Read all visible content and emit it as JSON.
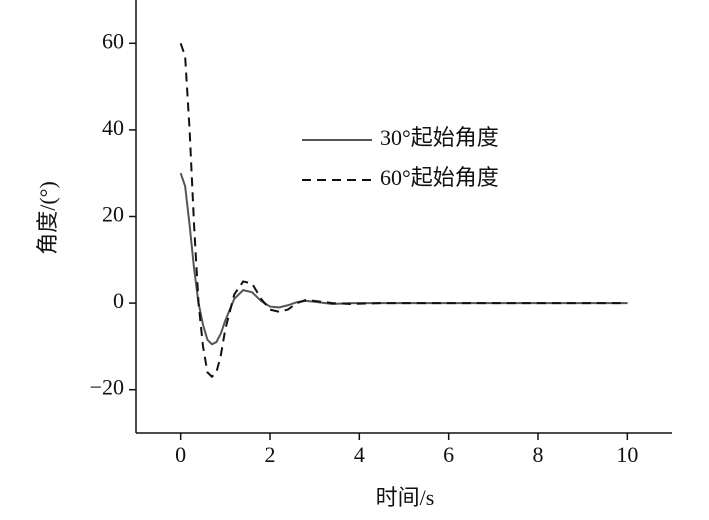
{
  "chart_data": {
    "type": "line",
    "x_label": "时间/s",
    "y_label": "角度/(°)",
    "x": [
      0,
      0.1,
      0.2,
      0.3,
      0.4,
      0.5,
      0.6,
      0.7,
      0.8,
      0.9,
      1.0,
      1.2,
      1.4,
      1.6,
      1.8,
      2.0,
      2.2,
      2.4,
      2.6,
      2.8,
      3.0,
      3.4,
      3.8,
      4.5,
      6,
      8,
      10
    ],
    "series": [
      {
        "name": "30°起始角度",
        "color": "#555555",
        "dash": "solid",
        "values": [
          30,
          27,
          18,
          8,
          0,
          -5,
          -8.5,
          -9.5,
          -9,
          -7,
          -4,
          1,
          3,
          2.5,
          0.5,
          -0.8,
          -1,
          -0.5,
          0.2,
          0.5,
          0.3,
          -0.2,
          0,
          0,
          0,
          0,
          0
        ]
      },
      {
        "name": "60°起始角度",
        "color": "#111111",
        "dash": "dashed",
        "values": [
          60,
          57,
          40,
          18,
          0,
          -10,
          -16,
          -17,
          -16,
          -12,
          -6,
          2,
          5,
          4.5,
          1,
          -1.5,
          -2,
          -1.5,
          0,
          0.7,
          0.5,
          0,
          -0.2,
          0,
          0,
          0,
          0
        ]
      }
    ],
    "xlim": [
      -1,
      11
    ],
    "ylim": [
      -30,
      70
    ],
    "xticks": [
      0,
      2,
      4,
      6,
      8,
      10
    ],
    "yticks": [
      {
        "value": -20,
        "label": "−20"
      },
      0,
      20,
      40,
      60
    ],
    "legend": "upper center",
    "grid": false
  }
}
